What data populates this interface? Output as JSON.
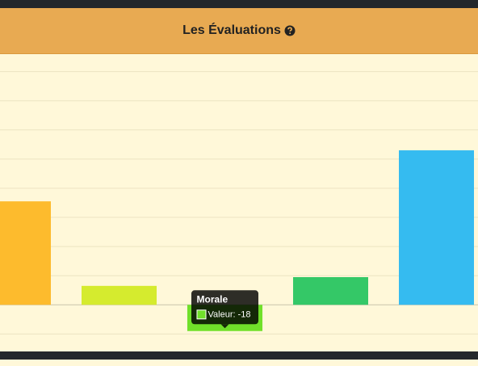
{
  "header": {
    "title": "Les Évaluations"
  },
  "chart_data": {
    "type": "bar",
    "categories": [
      null,
      null,
      "Morale",
      null,
      null
    ],
    "values": [
      71,
      13,
      -18,
      19,
      106
    ],
    "colors": [
      "#fdbb2d",
      "#d5eb2e",
      "#70e02a",
      "#34c867",
      "#35bbf0"
    ],
    "ylim": [
      -32,
      172
    ],
    "yticks": [
      -20,
      0,
      20,
      40,
      60,
      80,
      100,
      120,
      140,
      160
    ],
    "grid": true,
    "tooltip": {
      "index": 2,
      "label": "Valeur:"
    }
  }
}
